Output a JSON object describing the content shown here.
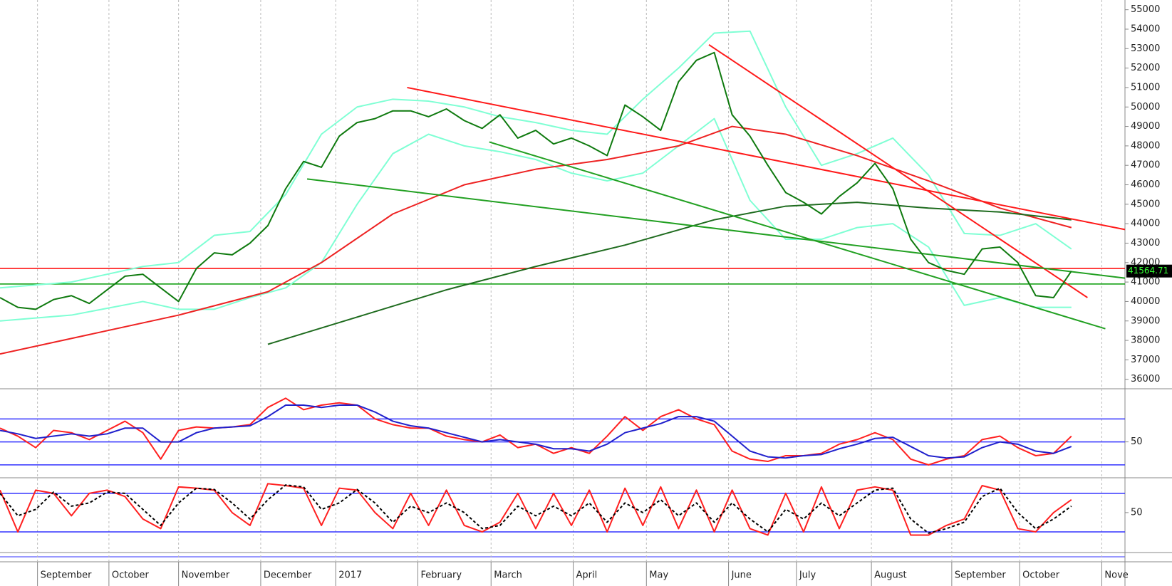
{
  "chart_data": [
    {
      "type": "line",
      "last_value": 41564.71,
      "xlim": [
        0,
        63
      ],
      "xticks": [
        {
          "value": 2.1,
          "label": "September"
        },
        {
          "value": 6.1,
          "label": "October"
        },
        {
          "value": 10.0,
          "label": "November"
        },
        {
          "value": 14.6,
          "label": "December"
        },
        {
          "value": 18.8,
          "label": "2017"
        },
        {
          "value": 23.4,
          "label": "February"
        },
        {
          "value": 27.5,
          "label": "March"
        },
        {
          "value": 32.1,
          "label": "April"
        },
        {
          "value": 36.2,
          "label": "May"
        },
        {
          "value": 40.8,
          "label": "June"
        },
        {
          "value": 44.6,
          "label": "July"
        },
        {
          "value": 48.8,
          "label": "August"
        },
        {
          "value": 53.3,
          "label": "September"
        },
        {
          "value": 57.1,
          "label": "October"
        },
        {
          "value": 61.7,
          "label": "Nove"
        }
      ],
      "ylim": [
        35550,
        55500
      ],
      "yticks": [
        36000,
        37000,
        38000,
        39000,
        40000,
        41000,
        42000,
        43000,
        44000,
        45000,
        46000,
        47000,
        48000,
        49000,
        50000,
        51000,
        52000,
        53000,
        54000,
        55000
      ],
      "levels": [
        {
          "value": 41700,
          "color": "#ff0000"
        },
        {
          "value": 40900,
          "color": "#009900"
        }
      ],
      "series": [
        {
          "color": "#7fffd4",
          "x": [
            0,
            4,
            8,
            10,
            12,
            14,
            16,
            18,
            20,
            22,
            24,
            26,
            28,
            30,
            32,
            34,
            36,
            38,
            40,
            42,
            44,
            46,
            48,
            50,
            52,
            54,
            56,
            58,
            60
          ],
          "values": [
            40700,
            41000,
            41800,
            42000,
            43400,
            43600,
            45500,
            48600,
            50000,
            50400,
            50300,
            50000,
            49500,
            49200,
            48800,
            48600,
            50400,
            52000,
            53800,
            53900,
            50000,
            47000,
            47600,
            48400,
            46500,
            43500,
            43400,
            44000,
            42700
          ]
        },
        {
          "color": "#7fffd4",
          "x": [
            0,
            4,
            8,
            10,
            12,
            14,
            16,
            18,
            20,
            22,
            24,
            26,
            28,
            30,
            32,
            34,
            36,
            38,
            40,
            42,
            44,
            46,
            48,
            50,
            52,
            54,
            56,
            58,
            60
          ],
          "values": [
            39000,
            39300,
            40000,
            39600,
            39600,
            40200,
            40700,
            42000,
            45000,
            47600,
            48600,
            48000,
            47700,
            47300,
            46600,
            46200,
            46600,
            48000,
            49400,
            45200,
            43200,
            43200,
            43800,
            44000,
            42800,
            39800,
            40200,
            39700,
            39700
          ]
        },
        {
          "color": "#ee2222",
          "x": [
            0,
            5,
            10,
            15,
            18,
            22,
            26,
            30,
            34,
            38,
            41,
            44,
            48,
            52,
            56,
            60
          ],
          "values": [
            37300,
            38300,
            39300,
            40500,
            42000,
            44500,
            46000,
            46800,
            47300,
            48000,
            49000,
            48600,
            47500,
            46200,
            44800,
            43800
          ]
        },
        {
          "color": "#1e6b1e",
          "x": [
            15,
            20,
            25,
            30,
            35,
            40,
            44,
            48,
            52,
            56,
            60
          ],
          "values": [
            37800,
            39200,
            40600,
            41800,
            42900,
            44200,
            44900,
            45100,
            44800,
            44600,
            44200
          ]
        },
        {
          "color": "#ff1a1a",
          "x": [
            22.8,
            63
          ],
          "values": [
            51000,
            43700
          ]
        },
        {
          "color": "#ff1a1a",
          "x": [
            39.7,
            60.9
          ],
          "values": [
            53200,
            40200
          ]
        },
        {
          "color": "#22a022",
          "x": [
            17.2,
            63
          ],
          "values": [
            46300,
            41200
          ]
        },
        {
          "color": "#22a022",
          "x": [
            27.4,
            61.9
          ],
          "values": [
            48200,
            38600
          ]
        },
        {
          "color": "#0f7a0f",
          "x": [
            0,
            1,
            2,
            3,
            4,
            5,
            6,
            7,
            8,
            9,
            10,
            11,
            12,
            13,
            14,
            15,
            16,
            17,
            18,
            19,
            20,
            21,
            22,
            23,
            24,
            25,
            26,
            27,
            28,
            29,
            30,
            31,
            32,
            33,
            34,
            35,
            36,
            37,
            38,
            39,
            40,
            41,
            42,
            43,
            44,
            45,
            46,
            47,
            48,
            49,
            50,
            51,
            52,
            53,
            54,
            55,
            56,
            57,
            58,
            59,
            60
          ],
          "values": [
            40200,
            39700,
            39600,
            40100,
            40300,
            39900,
            40600,
            41300,
            41400,
            40700,
            40000,
            41700,
            42500,
            42400,
            43000,
            43900,
            45800,
            47200,
            46900,
            48500,
            49200,
            49400,
            49800,
            49800,
            49500,
            49900,
            49300,
            48900,
            49600,
            48400,
            48800,
            48100,
            48400,
            48000,
            47500,
            50100,
            49500,
            48800,
            51300,
            52400,
            52800,
            49600,
            48500,
            47000,
            45600,
            45100,
            44500,
            45400,
            46100,
            47100,
            45800,
            43200,
            42000,
            41600,
            41400,
            42700,
            42800,
            42000,
            40300,
            40200,
            41564.71
          ]
        }
      ]
    },
    {
      "type": "line",
      "xlim": [
        0,
        63
      ],
      "ylim": [
        20,
        95
      ],
      "yticks": [
        50
      ],
      "levels": [
        {
          "value": 30,
          "color": "#3333ff"
        },
        {
          "value": 50,
          "color": "#3333ff"
        },
        {
          "value": 70,
          "color": "#3333ff"
        }
      ],
      "series": [
        {
          "color": "#ff2020",
          "x": [
            0,
            1,
            2,
            3,
            4,
            5,
            6,
            7,
            8,
            9,
            10,
            11,
            12,
            13,
            14,
            15,
            16,
            17,
            18,
            19,
            20,
            21,
            22,
            23,
            24,
            25,
            26,
            27,
            28,
            29,
            30,
            31,
            32,
            33,
            34,
            35,
            36,
            37,
            38,
            39,
            40,
            41,
            42,
            43,
            44,
            45,
            46,
            47,
            48,
            49,
            50,
            51,
            52,
            53,
            54,
            55,
            56,
            57,
            58,
            59,
            60
          ],
          "values": [
            62,
            55,
            45,
            60,
            58,
            52,
            60,
            68,
            58,
            35,
            60,
            63,
            62,
            63,
            65,
            80,
            88,
            78,
            82,
            84,
            82,
            70,
            65,
            62,
            62,
            55,
            52,
            50,
            56,
            45,
            48,
            40,
            45,
            40,
            55,
            72,
            60,
            72,
            78,
            70,
            65,
            42,
            35,
            33,
            38,
            38,
            40,
            48,
            52,
            58,
            52,
            35,
            30,
            35,
            38,
            52,
            55,
            45,
            38,
            40,
            55
          ]
        },
        {
          "color": "#2020cc",
          "x": [
            0,
            1,
            2,
            3,
            4,
            5,
            6,
            7,
            8,
            9,
            10,
            11,
            12,
            13,
            14,
            15,
            16,
            17,
            18,
            19,
            20,
            21,
            22,
            23,
            24,
            25,
            26,
            27,
            28,
            29,
            30,
            31,
            32,
            33,
            34,
            35,
            36,
            37,
            38,
            39,
            40,
            41,
            42,
            43,
            44,
            45,
            46,
            47,
            48,
            49,
            50,
            51,
            52,
            53,
            54,
            55,
            56,
            57,
            58,
            59,
            60
          ],
          "values": [
            60,
            57,
            53,
            55,
            57,
            55,
            57,
            62,
            62,
            50,
            50,
            58,
            62,
            63,
            64,
            72,
            82,
            82,
            80,
            82,
            82,
            76,
            68,
            64,
            62,
            58,
            54,
            50,
            52,
            50,
            48,
            44,
            44,
            42,
            48,
            58,
            62,
            66,
            72,
            72,
            68,
            55,
            42,
            37,
            36,
            38,
            39,
            44,
            48,
            53,
            54,
            46,
            38,
            36,
            37,
            45,
            50,
            48,
            42,
            40,
            46
          ]
        }
      ]
    },
    {
      "type": "line",
      "xlim": [
        0,
        63
      ],
      "ylim": [
        -10,
        102
      ],
      "yticks": [
        50
      ],
      "levels": [
        {
          "value": 20,
          "color": "#3333ff"
        },
        {
          "value": 80,
          "color": "#3333ff"
        }
      ],
      "series": [
        {
          "color": "#ff2020",
          "x": [
            0,
            1,
            2,
            3,
            4,
            5,
            6,
            7,
            8,
            9,
            10,
            11,
            12,
            13,
            14,
            15,
            16,
            17,
            18,
            19,
            20,
            21,
            22,
            23,
            24,
            25,
            26,
            27,
            28,
            29,
            30,
            31,
            32,
            33,
            34,
            35,
            36,
            37,
            38,
            39,
            40,
            41,
            42,
            43,
            44,
            45,
            46,
            47,
            48,
            49,
            50,
            51,
            52,
            53,
            54,
            55,
            56,
            57,
            58,
            59,
            60
          ],
          "values": [
            85,
            20,
            85,
            80,
            45,
            80,
            85,
            75,
            40,
            25,
            90,
            88,
            85,
            50,
            30,
            95,
            92,
            88,
            30,
            88,
            85,
            50,
            25,
            80,
            30,
            85,
            30,
            20,
            35,
            80,
            25,
            80,
            30,
            85,
            20,
            88,
            30,
            90,
            25,
            85,
            20,
            85,
            25,
            15,
            80,
            20,
            90,
            25,
            85,
            90,
            85,
            15,
            15,
            30,
            40,
            92,
            85,
            25,
            20,
            50,
            70
          ]
        },
        {
          "color": "#000000",
          "style": "dashed",
          "x": [
            0,
            1,
            2,
            3,
            4,
            5,
            6,
            7,
            8,
            9,
            10,
            11,
            12,
            13,
            14,
            15,
            16,
            17,
            18,
            19,
            20,
            21,
            22,
            23,
            24,
            25,
            26,
            27,
            28,
            29,
            30,
            31,
            32,
            33,
            34,
            35,
            36,
            37,
            38,
            39,
            40,
            41,
            42,
            43,
            44,
            45,
            46,
            47,
            48,
            49,
            50,
            51,
            52,
            53,
            54,
            55,
            56,
            57,
            58,
            59,
            60
          ],
          "values": [
            80,
            45,
            55,
            82,
            60,
            65,
            82,
            80,
            55,
            30,
            65,
            88,
            86,
            65,
            40,
            70,
            93,
            90,
            55,
            65,
            86,
            65,
            35,
            60,
            50,
            65,
            50,
            25,
            30,
            60,
            45,
            60,
            45,
            65,
            35,
            65,
            50,
            70,
            45,
            65,
            35,
            65,
            40,
            20,
            55,
            40,
            65,
            45,
            65,
            85,
            88,
            40,
            18,
            25,
            35,
            75,
            88,
            50,
            25,
            40,
            60
          ]
        }
      ]
    }
  ]
}
